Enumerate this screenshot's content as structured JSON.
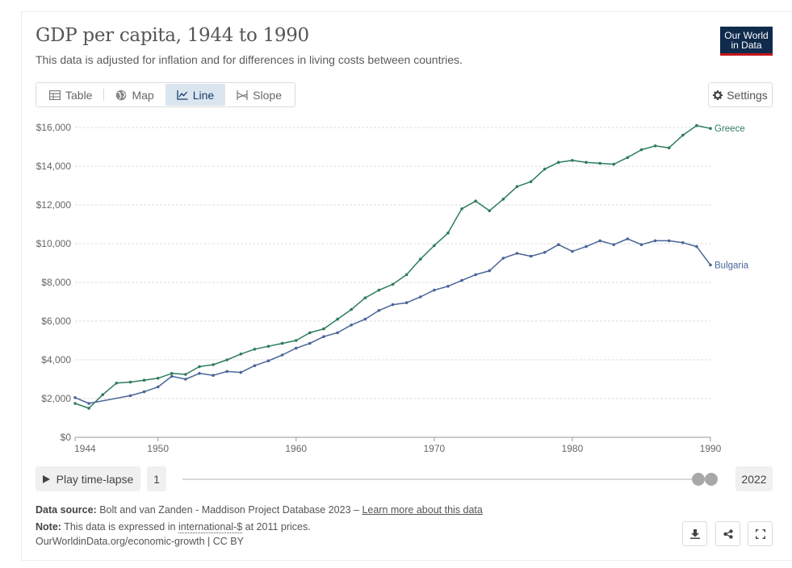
{
  "header": {
    "title": "GDP per capita, 1944 to 1990",
    "subtitle": "This data is adjusted for inflation and for differences in living costs between countries.",
    "logo_line1": "Our World",
    "logo_line2": "in Data"
  },
  "tabs": [
    {
      "label": "Table",
      "icon": "table-icon"
    },
    {
      "label": "Map",
      "icon": "globe-icon"
    },
    {
      "label": "Line",
      "icon": "line-chart-icon",
      "active": true
    },
    {
      "label": "Slope",
      "icon": "slope-icon"
    }
  ],
  "settings_label": "Settings",
  "timeline": {
    "play_label": "Play time-lapse",
    "start_label": "1",
    "end_label": "2022"
  },
  "footer": {
    "source_prefix": "Data source:",
    "source_text": "Bolt and van Zanden - Maddison Project Database 2023 –",
    "source_link": "Learn more about this data",
    "note_prefix": "Note:",
    "note_pre": "This data is expressed in",
    "note_term": "international-$",
    "note_post": "at 2011 prices.",
    "credit": "OurWorldinData.org/economic-growth | CC BY"
  },
  "colors": {
    "greece": "#2e7d5b",
    "bulgaria": "#4a6698",
    "grid": "#dddddd",
    "tick_text": "#666666"
  },
  "chart_data": {
    "type": "line",
    "title": "GDP per capita, 1944 to 1990",
    "xlabel": "",
    "ylabel": "",
    "xlim": [
      1944,
      1990
    ],
    "ylim": [
      0,
      16000
    ],
    "x_ticks": [
      1944,
      1950,
      1960,
      1970,
      1980,
      1990
    ],
    "y_ticks": [
      0,
      2000,
      4000,
      6000,
      8000,
      10000,
      12000,
      14000,
      16000
    ],
    "y_tick_labels": [
      "$0",
      "$2,000",
      "$4,000",
      "$6,000",
      "$8,000",
      "$10,000",
      "$12,000",
      "$14,000",
      "$16,000"
    ],
    "grid": true,
    "legend": "end-of-line labels",
    "series": [
      {
        "name": "Greece",
        "x": [
          1944,
          1945,
          1946,
          1947,
          1948,
          1949,
          1950,
          1951,
          1952,
          1953,
          1954,
          1955,
          1956,
          1957,
          1958,
          1959,
          1960,
          1961,
          1962,
          1963,
          1964,
          1965,
          1966,
          1967,
          1968,
          1969,
          1970,
          1971,
          1972,
          1973,
          1974,
          1975,
          1976,
          1977,
          1978,
          1979,
          1980,
          1981,
          1982,
          1983,
          1984,
          1985,
          1986,
          1987,
          1988,
          1989,
          1990
        ],
        "values": [
          1750,
          1500,
          2200,
          2800,
          2850,
          2950,
          3050,
          3300,
          3250,
          3650,
          3750,
          4000,
          4300,
          4550,
          4700,
          4850,
          5000,
          5400,
          5600,
          6100,
          6600,
          7200,
          7600,
          7900,
          8400,
          9200,
          9900,
          10550,
          11800,
          12200,
          11700,
          12300,
          12950,
          13200,
          13850,
          14200,
          14300,
          14200,
          14150,
          14100,
          14450,
          14850,
          15050,
          14950,
          15600,
          16100,
          15950
        ]
      },
      {
        "name": "Bulgaria",
        "x": [
          1944,
          1945,
          1948,
          1949,
          1950,
          1951,
          1952,
          1953,
          1954,
          1955,
          1956,
          1957,
          1958,
          1959,
          1960,
          1961,
          1962,
          1963,
          1964,
          1965,
          1966,
          1967,
          1968,
          1969,
          1970,
          1971,
          1972,
          1973,
          1974,
          1975,
          1976,
          1977,
          1978,
          1979,
          1980,
          1981,
          1982,
          1983,
          1984,
          1985,
          1986,
          1987,
          1988,
          1989,
          1990
        ],
        "values": [
          2050,
          1750,
          2150,
          2350,
          2600,
          3150,
          3000,
          3300,
          3200,
          3400,
          3350,
          3700,
          3950,
          4250,
          4600,
          4850,
          5200,
          5400,
          5800,
          6100,
          6550,
          6850,
          6950,
          7250,
          7600,
          7800,
          8100,
          8400,
          8600,
          9250,
          9500,
          9350,
          9550,
          9950,
          9600,
          9850,
          10150,
          9950,
          10250,
          9950,
          10150,
          10150,
          10050,
          9850,
          8900
        ]
      }
    ]
  }
}
